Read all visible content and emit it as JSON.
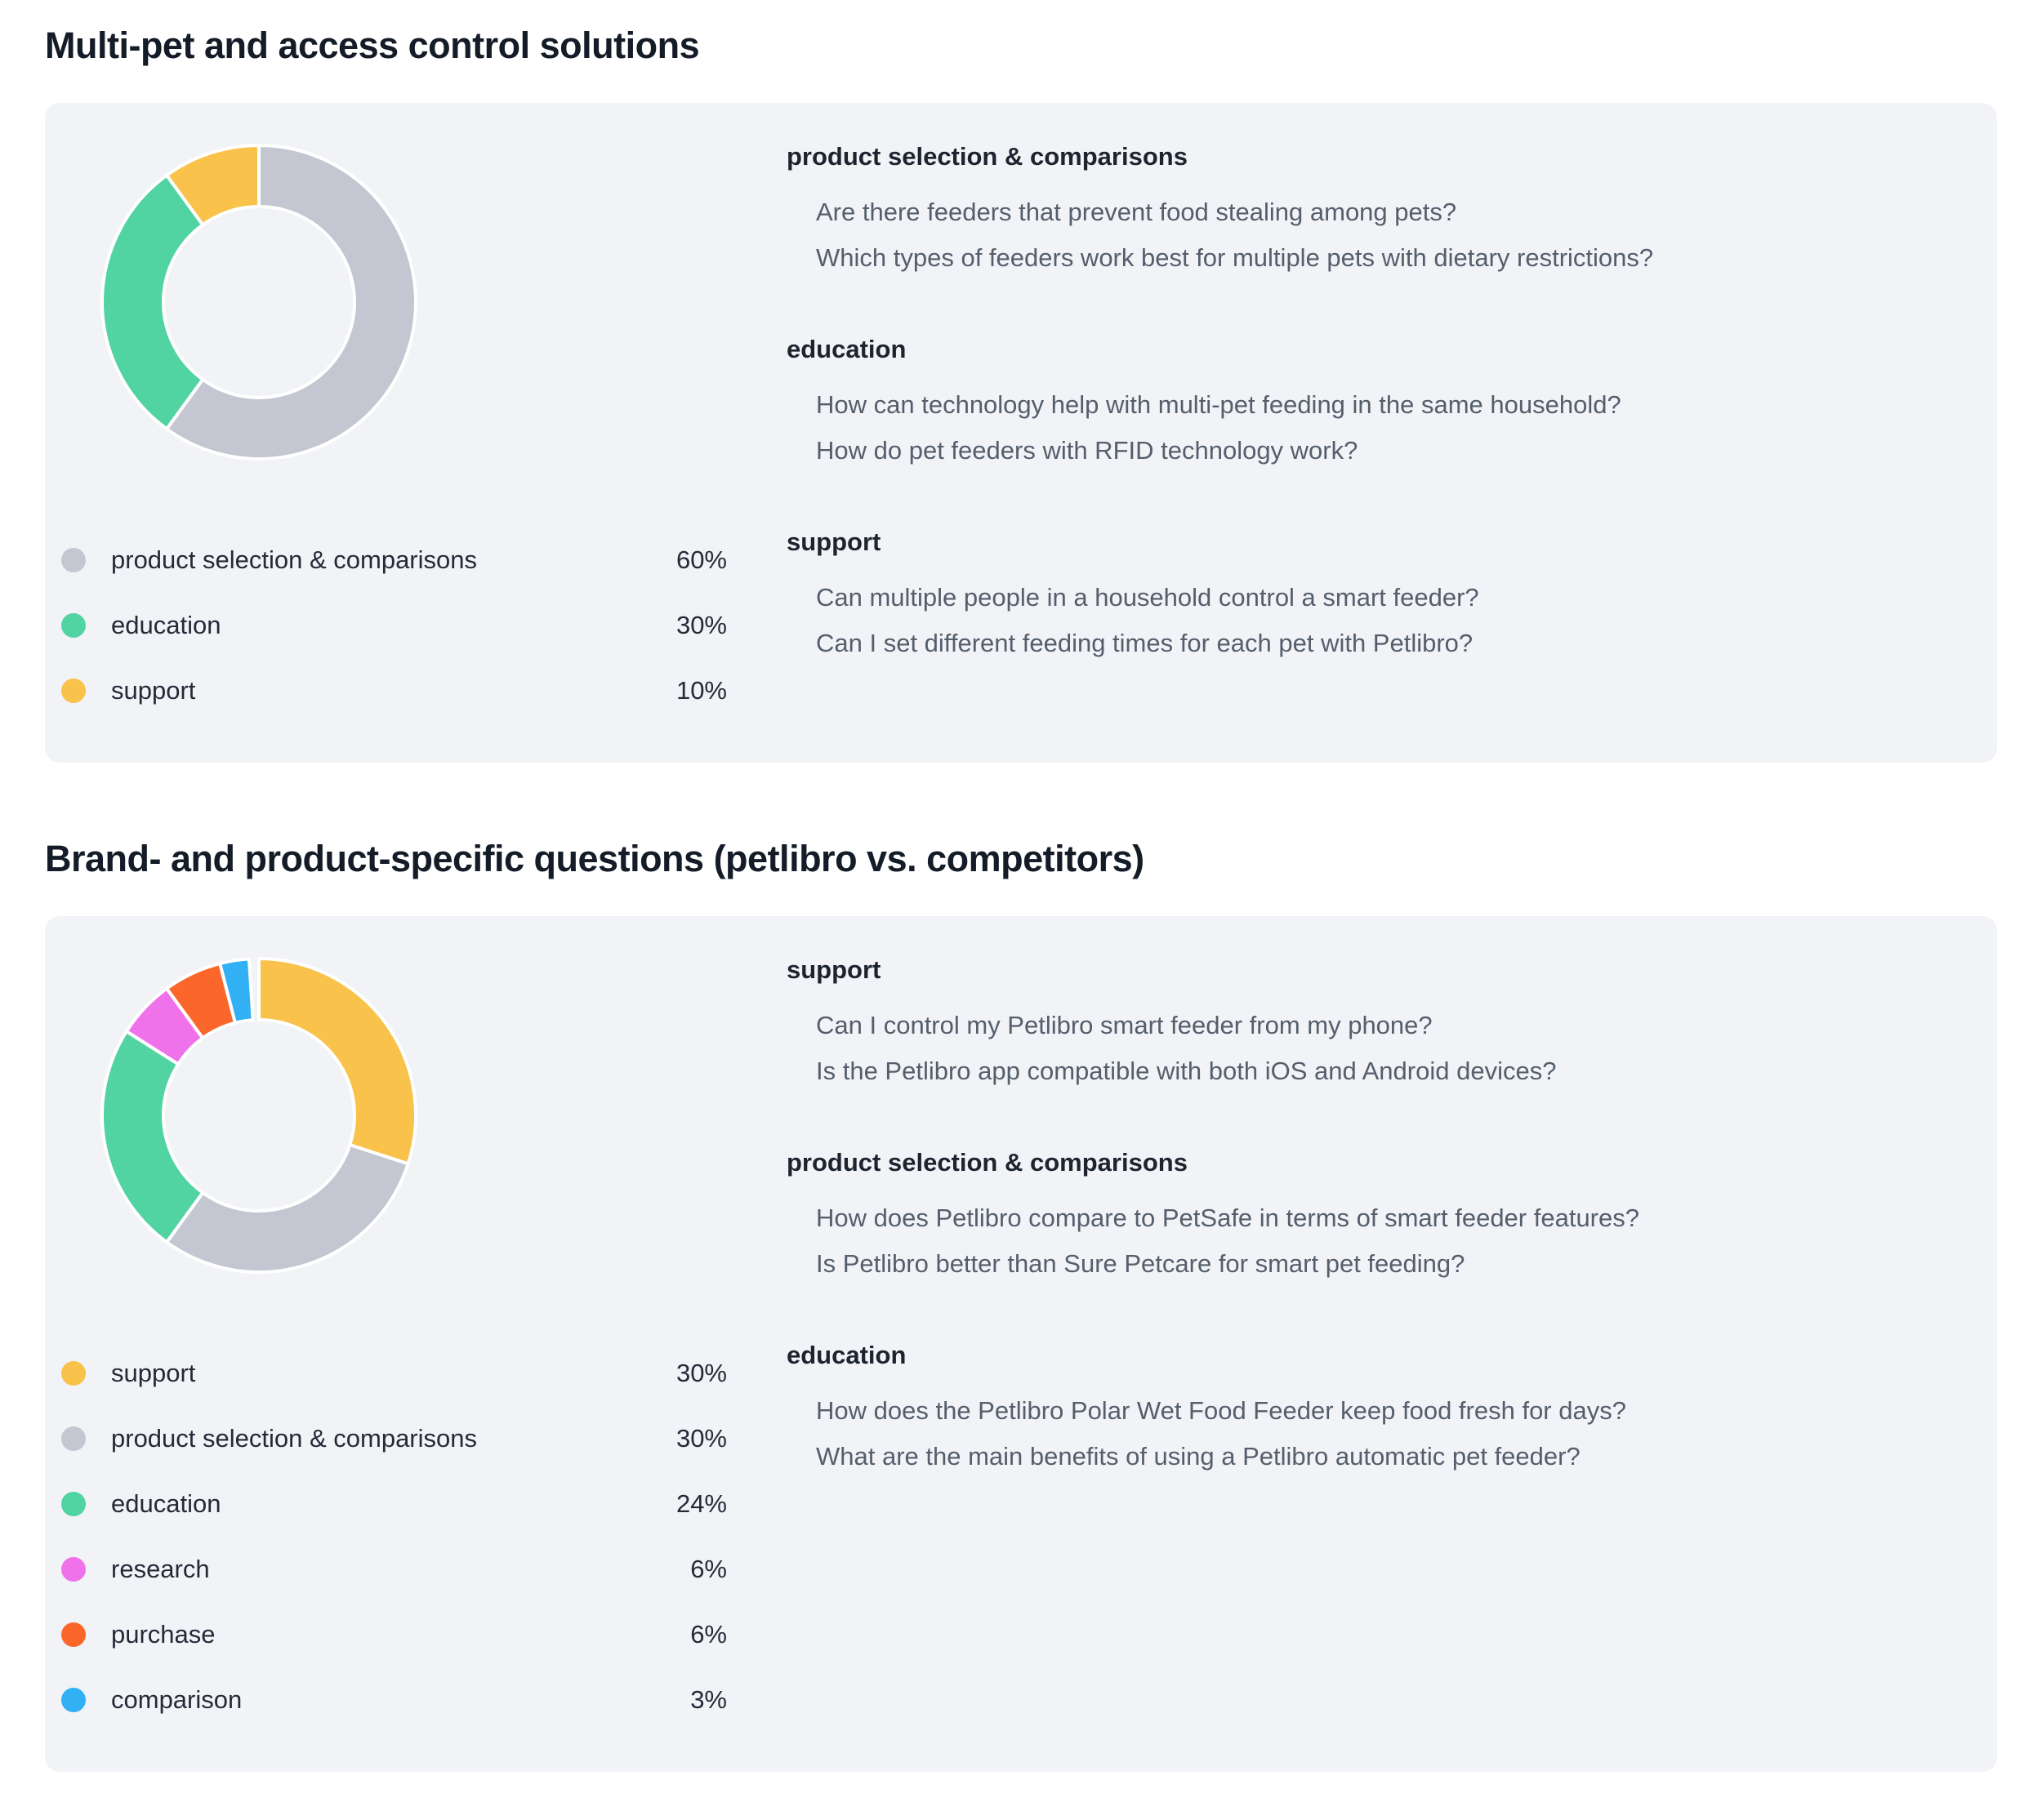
{
  "page": {
    "background": "#ffffff",
    "card_background": "#f1f3f7",
    "separator_color": "#ffffff"
  },
  "sections": [
    {
      "title": "Multi-pet and access control solutions",
      "groups": [
        {
          "heading": "product selection & comparisons",
          "questions": [
            "Are there feeders that prevent food stealing among pets?",
            "Which types of feeders work best for multiple pets with dietary restrictions?"
          ]
        },
        {
          "heading": "education",
          "questions": [
            "How can technology help with multi-pet feeding in the same household?",
            "How do pet feeders with RFID technology work?"
          ]
        },
        {
          "heading": "support",
          "questions": [
            "Can multiple people in a household control a smart feeder?",
            "Can I set different feeding times for each pet with Petlibro?"
          ]
        }
      ]
    },
    {
      "title": "Brand- and product-specific questions (petlibro vs. competitors)",
      "groups": [
        {
          "heading": "support",
          "questions": [
            "Can I control my Petlibro smart feeder from my phone?",
            "Is the Petlibro app compatible with both iOS and Android devices?"
          ]
        },
        {
          "heading": "product selection & comparisons",
          "questions": [
            "How does Petlibro compare to PetSafe in terms of smart feeder features?",
            "Is Petlibro better than Sure Petcare for smart pet feeding?"
          ]
        },
        {
          "heading": "education",
          "questions": [
            "How does the Petlibro Polar Wet Food Feeder keep food fresh for days?",
            "What are the main benefits of using a Petlibro automatic pet feeder?"
          ]
        }
      ]
    }
  ],
  "chart_data": [
    {
      "type": "pie",
      "subtype": "donut",
      "title": "Multi-pet and access control solutions",
      "labels": [
        "product selection & comparisons",
        "education",
        "support"
      ],
      "values": [
        60,
        30,
        10
      ],
      "value_labels": [
        "60%",
        "30%",
        "10%"
      ],
      "unit": "%",
      "colors": [
        "#c4c7d1",
        "#51d4a1",
        "#f9c24b"
      ],
      "start_angle_deg": 0,
      "direction": "clockwise",
      "legend_position": "below-chart"
    },
    {
      "type": "pie",
      "subtype": "donut",
      "title": "Brand- and product-specific questions (petlibro vs. competitors)",
      "labels": [
        "support",
        "product selection & comparisons",
        "education",
        "research",
        "purchase",
        "comparison"
      ],
      "values": [
        30,
        30,
        24,
        6,
        6,
        3
      ],
      "value_labels": [
        "30%",
        "30%",
        "24%",
        "6%",
        "6%",
        "3%"
      ],
      "unit": "%",
      "colors": [
        "#f9c24b",
        "#c4c7d1",
        "#51d4a1",
        "#ef72ea",
        "#fb672b",
        "#31b0f4"
      ],
      "start_angle_deg": 0,
      "direction": "clockwise",
      "legend_position": "below-chart"
    }
  ]
}
